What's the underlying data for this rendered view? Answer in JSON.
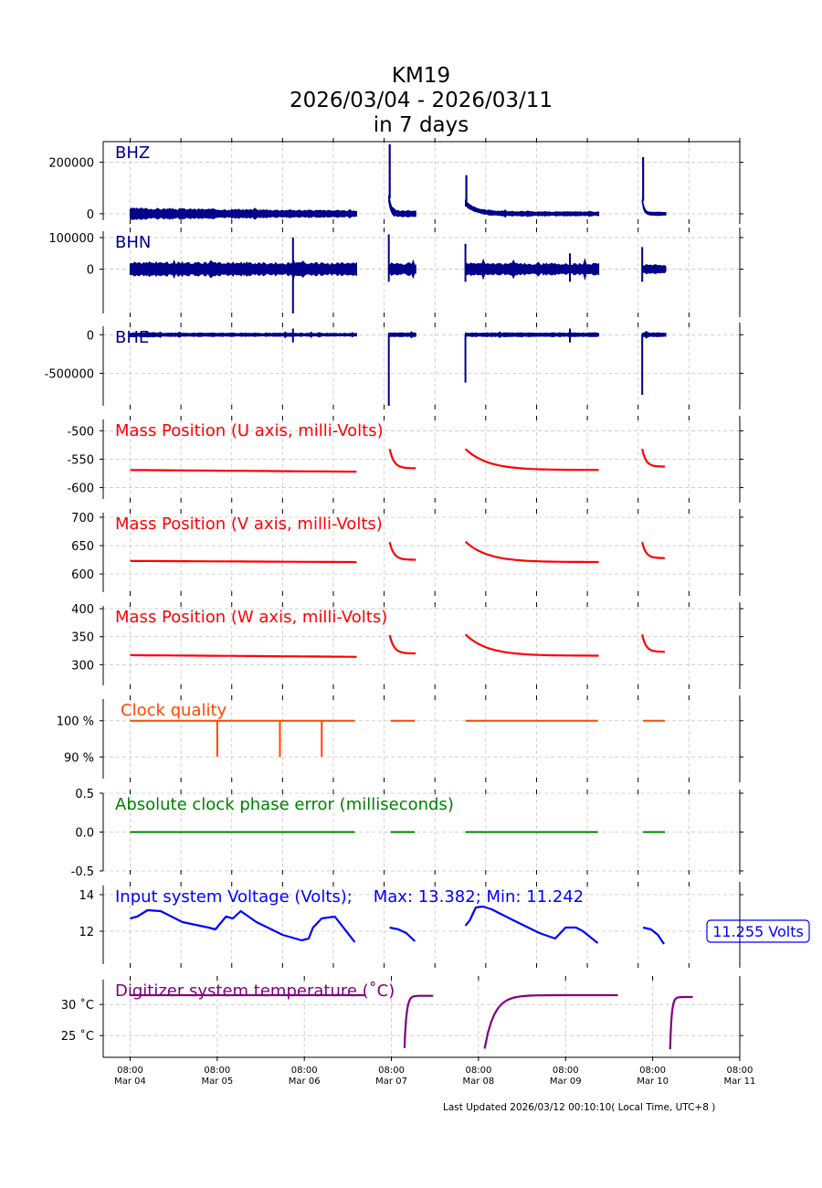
{
  "header": {
    "station": "KM19",
    "date_range": "2026/03/04 - 2026/03/11",
    "span": "in 7 days"
  },
  "footer": {
    "last_updated": "Last Updated 2026/03/12 00:10:10( Local Time, UTC+8 )"
  },
  "chart_data": {
    "type": "line",
    "title": "KM19 2026/03/04 - 2026/03/11 in 7 days",
    "x_unit": "days since Mar 04 08:00",
    "xlim": [
      -0.3,
      7.0
    ],
    "x_ticks": [
      {
        "value": 0,
        "time": "08:00",
        "date": "Mar 04"
      },
      {
        "value": 1,
        "time": "08:00",
        "date": "Mar 05"
      },
      {
        "value": 2,
        "time": "08:00",
        "date": "Mar 06"
      },
      {
        "value": 3,
        "time": "08:00",
        "date": "Mar 07"
      },
      {
        "value": 4,
        "time": "08:00",
        "date": "Mar 08"
      },
      {
        "value": 5,
        "time": "08:00",
        "date": "Mar 09"
      },
      {
        "value": 6,
        "time": "08:00",
        "date": "Mar 10"
      },
      {
        "value": 7,
        "time": "08:00",
        "date": "Mar 11"
      }
    ],
    "panels": [
      {
        "id": "bhz",
        "label": "BHZ",
        "color": "#00008b",
        "style": "waveform",
        "ylim": [
          -25000,
          280000
        ],
        "y_ticks": [
          {
            "value": 0,
            "label": "0"
          },
          {
            "value": 200000,
            "label": "200000"
          }
        ],
        "segments": [
          {
            "x": [
              0.0,
              2.6
            ],
            "amp": [
              18000,
              10000
            ],
            "start_peak": 0
          },
          {
            "x": [
              2.97,
              3.28
            ],
            "amp": [
              12000,
              9000
            ],
            "start_peak": 270000,
            "decay": 60000
          },
          {
            "x": [
              3.85,
              5.38
            ],
            "amp": [
              8000,
              6000
            ],
            "start_peak": 150000,
            "decay": 40000
          },
          {
            "x": [
              5.88,
              6.15
            ],
            "amp": [
              6000,
              5000
            ],
            "start_peak": 220000,
            "decay": 50000
          }
        ]
      },
      {
        "id": "bhn",
        "label": "BHN",
        "color": "#00008b",
        "style": "waveform",
        "ylim": [
          -140000,
          120000
        ],
        "y_ticks": [
          {
            "value": 0,
            "label": "0"
          },
          {
            "value": 100000,
            "label": "100000"
          }
        ],
        "segments": [
          {
            "x": [
              0.0,
              2.6
            ],
            "amp": [
              18000,
              16000
            ],
            "spikes": [
              {
                "x": 1.87,
                "lo": -140000,
                "hi": 100000
              }
            ]
          },
          {
            "x": [
              2.97,
              3.28
            ],
            "amp": [
              16000,
              16000
            ],
            "spikes": [
              {
                "x": 2.97,
                "lo": -40000,
                "hi": 110000
              }
            ]
          },
          {
            "x": [
              3.85,
              5.38
            ],
            "amp": [
              16000,
              14000
            ],
            "spikes": [
              {
                "x": 3.85,
                "lo": -40000,
                "hi": 80000
              },
              {
                "x": 5.05,
                "lo": -40000,
                "hi": 50000
              }
            ]
          },
          {
            "x": [
              5.88,
              6.15
            ],
            "amp": [
              12000,
              10000
            ],
            "spikes": [
              {
                "x": 5.88,
                "lo": -40000,
                "hi": 70000
              }
            ]
          }
        ]
      },
      {
        "id": "bhe",
        "label": "BHE",
        "color": "#00008b",
        "style": "waveform",
        "ylim": [
          -920000,
          110000
        ],
        "y_ticks": [
          {
            "value": 0,
            "label": "0"
          },
          {
            "value": -500000,
            "label": "-500000"
          }
        ],
        "segments": [
          {
            "x": [
              0.0,
              2.6
            ],
            "amp": [
              20000,
              15000
            ],
            "spikes": [
              {
                "x": 1.87,
                "lo": -100000,
                "hi": 80000
              }
            ]
          },
          {
            "x": [
              2.97,
              3.28
            ],
            "amp": [
              20000,
              20000
            ],
            "spikes": [
              {
                "x": 2.97,
                "lo": -920000,
                "hi": 0
              }
            ]
          },
          {
            "x": [
              3.85,
              5.38
            ],
            "amp": [
              20000,
              20000
            ],
            "spikes": [
              {
                "x": 3.85,
                "lo": -620000,
                "hi": 0
              },
              {
                "x": 5.05,
                "lo": -100000,
                "hi": 80000
              }
            ]
          },
          {
            "x": [
              5.88,
              6.15
            ],
            "amp": [
              20000,
              20000
            ],
            "spikes": [
              {
                "x": 5.88,
                "lo": -780000,
                "hi": 0
              }
            ]
          }
        ]
      },
      {
        "id": "mass_u",
        "label": "Mass Position (U axis, milli-Volts)",
        "color": "#ff0000",
        "style": "decay",
        "ylim": [
          -620,
          -480
        ],
        "y_ticks": [
          {
            "value": -500,
            "label": "-500"
          },
          {
            "value": -550,
            "label": "-550"
          },
          {
            "value": -600,
            "label": "-600"
          }
        ],
        "segments": [
          {
            "x": [
              0.0,
              2.6
            ],
            "y0": -569,
            "y1": -572,
            "flat": true
          },
          {
            "x": [
              2.98,
              3.28
            ],
            "y0": -532,
            "y1": -566
          },
          {
            "x": [
              3.85,
              5.38
            ],
            "y0": -532,
            "y1": -569
          },
          {
            "x": [
              5.88,
              6.14
            ],
            "y0": -532,
            "y1": -563
          }
        ]
      },
      {
        "id": "mass_v",
        "label": "Mass Position (V axis, milli-Volts)",
        "color": "#ff0000",
        "style": "decay",
        "ylim": [
          568,
          708
        ],
        "y_ticks": [
          {
            "value": 700,
            "label": "700"
          },
          {
            "value": 650,
            "label": "650"
          },
          {
            "value": 600,
            "label": "600"
          }
        ],
        "segments": [
          {
            "x": [
              0.0,
              2.6
            ],
            "y0": 623,
            "y1": 621,
            "flat": true
          },
          {
            "x": [
              2.98,
              3.28
            ],
            "y0": 656,
            "y1": 625
          },
          {
            "x": [
              3.85,
              5.38
            ],
            "y0": 657,
            "y1": 621
          },
          {
            "x": [
              5.88,
              6.14
            ],
            "y0": 656,
            "y1": 628
          }
        ]
      },
      {
        "id": "mass_w",
        "label": "Mass Position (W axis, milli-Volts)",
        "color": "#ff0000",
        "style": "decay",
        "ylim": [
          263,
          405
        ],
        "y_ticks": [
          {
            "value": 400,
            "label": "400"
          },
          {
            "value": 350,
            "label": "350"
          },
          {
            "value": 300,
            "label": "300"
          }
        ],
        "segments": [
          {
            "x": [
              0.0,
              2.6
            ],
            "y0": 317,
            "y1": 314,
            "flat": true
          },
          {
            "x": [
              2.98,
              3.28
            ],
            "y0": 353,
            "y1": 320
          },
          {
            "x": [
              3.85,
              5.38
            ],
            "y0": 354,
            "y1": 316
          },
          {
            "x": [
              5.88,
              6.14
            ],
            "y0": 354,
            "y1": 323
          }
        ]
      },
      {
        "id": "clock_quality",
        "label": "Clock quality",
        "color": "#ff4500",
        "style": "step",
        "ylim": [
          84,
          106
        ],
        "y_ticks": [
          {
            "value": 100,
            "label": "100 %"
          },
          {
            "value": 90,
            "label": "90 %"
          }
        ],
        "segments": [
          {
            "x": [
              0.0,
              2.58
            ],
            "y": 100,
            "dips": [
              {
                "x": 1.0,
                "y": 90
              },
              {
                "x": 1.72,
                "y": 90
              },
              {
                "x": 2.2,
                "y": 90
              }
            ]
          },
          {
            "x": [
              2.99,
              3.27
            ],
            "y": 100
          },
          {
            "x": [
              3.85,
              5.37
            ],
            "y": 100
          },
          {
            "x": [
              5.89,
              6.14
            ],
            "y": 100
          }
        ]
      },
      {
        "id": "phase_error",
        "label": "Absolute clock phase error (milliseconds)",
        "color": "#008000",
        "style": "step",
        "ylim": [
          -0.5,
          0.5
        ],
        "y_ticks": [
          {
            "value": 0.5,
            "label": "0.5"
          },
          {
            "value": 0.0,
            "label": "0.0"
          },
          {
            "value": -0.5,
            "label": "-0.5"
          }
        ],
        "segments": [
          {
            "x": [
              0.0,
              2.58
            ],
            "y": 0
          },
          {
            "x": [
              2.99,
              3.27
            ],
            "y": 0
          },
          {
            "x": [
              3.85,
              5.37
            ],
            "y": 0
          },
          {
            "x": [
              5.89,
              6.14
            ],
            "y": 0
          }
        ]
      },
      {
        "id": "voltage",
        "label": "Input system Voltage (Volts);    Max: 13.382; Min: 11.242",
        "color": "#0000ff",
        "style": "line",
        "ylim": [
          10.2,
          14.5
        ],
        "y_ticks": [
          {
            "value": 14,
            "label": "14"
          },
          {
            "value": 12,
            "label": "12"
          }
        ],
        "annotation": "11.255 Volts",
        "segments": [
          {
            "x": [
              0.0,
              0.08,
              0.2,
              0.35,
              0.6,
              0.9,
              0.98,
              1.1,
              1.18,
              1.27,
              1.45,
              1.75,
              1.97,
              2.05,
              2.1,
              2.2,
              2.35,
              2.58
            ],
            "y": [
              12.7,
              12.8,
              13.15,
              13.1,
              12.5,
              12.2,
              12.1,
              12.8,
              12.7,
              13.1,
              12.5,
              11.8,
              11.5,
              11.6,
              12.2,
              12.7,
              12.8,
              11.4
            ]
          },
          {
            "x": [
              2.98,
              3.08,
              3.17,
              3.27
            ],
            "y": [
              12.2,
              12.1,
              11.9,
              11.45
            ]
          },
          {
            "x": [
              3.85,
              3.9,
              3.97,
              4.05,
              4.15,
              4.4,
              4.7,
              4.88,
              5.0,
              5.12,
              5.2,
              5.37
            ],
            "y": [
              12.3,
              12.6,
              13.3,
              13.35,
              13.2,
              12.6,
              11.9,
              11.6,
              12.2,
              12.2,
              12.0,
              11.35
            ]
          },
          {
            "x": [
              5.89,
              5.98,
              6.06,
              6.13
            ],
            "y": [
              12.2,
              12.1,
              11.8,
              11.3
            ]
          }
        ]
      },
      {
        "id": "temperature",
        "label": "Digitizer system temperature ($^\\circ$C)",
        "label_display": "Digitizer system temperature (˚C)",
        "color": "#800080",
        "style": "warmup",
        "ylim": [
          21.5,
          34
        ],
        "y_ticks": [
          {
            "value": 30,
            "label": "30 ˚C"
          },
          {
            "value": 25,
            "label": "25 ˚C"
          }
        ],
        "segments": [
          {
            "x": [
              0.0,
              2.7
            ],
            "y0": 31.5,
            "y1": 31.5,
            "flat": true
          },
          {
            "x": [
              3.15,
              3.48
            ],
            "y0": 23.0,
            "y1": 31.4
          },
          {
            "x": [
              4.07,
              5.6
            ],
            "y0": 22.9,
            "y1": 31.5
          },
          {
            "x": [
              6.2,
              6.46
            ],
            "y0": 22.8,
            "y1": 31.2
          }
        ]
      }
    ],
    "grid": true
  }
}
